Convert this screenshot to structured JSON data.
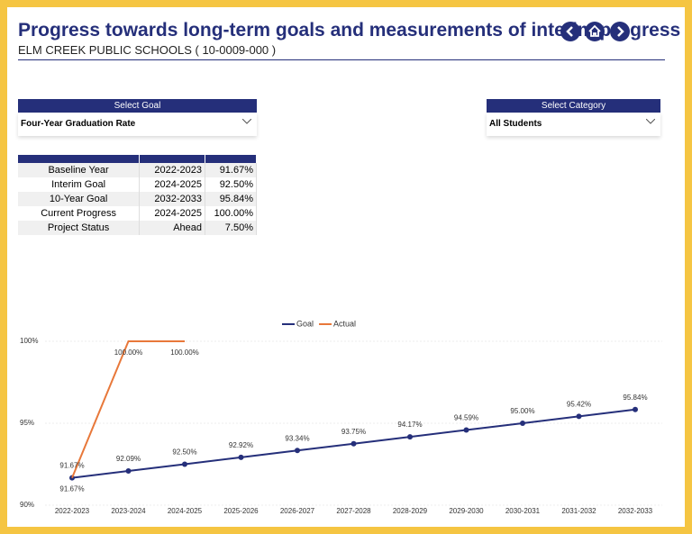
{
  "header": {
    "title": "Progress towards long-term goals and measurements of interim progress",
    "subtitle": "ELM CREEK PUBLIC SCHOOLS ( 10-0009-000 )"
  },
  "filters": [
    {
      "label": "Select Goal",
      "value": "Four-Year Graduation Rate"
    },
    {
      "label": "Select Category",
      "value": "All Students"
    }
  ],
  "table": {
    "rows": [
      [
        "Baseline Year",
        "2022-2023",
        "91.67%"
      ],
      [
        "Interim Goal",
        "2024-2025",
        "92.50%"
      ],
      [
        "10-Year Goal",
        "2032-2033",
        "95.84%"
      ],
      [
        "Current Progress",
        "2024-2025",
        "100.00%"
      ],
      [
        "Project Status",
        "Ahead",
        "7.50%"
      ]
    ]
  },
  "chart_data": {
    "type": "line",
    "categories": [
      "2022-2023",
      "2023-2024",
      "2024-2025",
      "2025-2026",
      "2026-2027",
      "2027-2028",
      "2028-2029",
      "2029-2030",
      "2030-2031",
      "2031-2032",
      "2032-2033"
    ],
    "series": [
      {
        "name": "Goal",
        "color": "#252f7a",
        "values": [
          91.67,
          92.09,
          92.5,
          92.92,
          93.34,
          93.75,
          94.17,
          94.59,
          95.0,
          95.42,
          95.84
        ],
        "value_labels": [
          "91.67%",
          "92.09%",
          "92.50%",
          "92.92%",
          "93.34%",
          "93.75%",
          "94.17%",
          "94.59%",
          "95.00%",
          "95.42%",
          "95.84%"
        ]
      },
      {
        "name": "Actual",
        "color": "#e8783a",
        "values": [
          91.67,
          100,
          100,
          null,
          null,
          null,
          null,
          null,
          null,
          null,
          null
        ],
        "value_labels": [
          "91.67%",
          "100.00%",
          "100.00%",
          null,
          null,
          null,
          null,
          null,
          null,
          null,
          null
        ]
      }
    ],
    "ylim": [
      90,
      100
    ],
    "yticks": [
      {
        "value": 90,
        "label": "90%"
      },
      {
        "value": 95,
        "label": "95%"
      },
      {
        "value": 100,
        "label": "100%"
      }
    ],
    "grid": true,
    "legend": "top"
  }
}
